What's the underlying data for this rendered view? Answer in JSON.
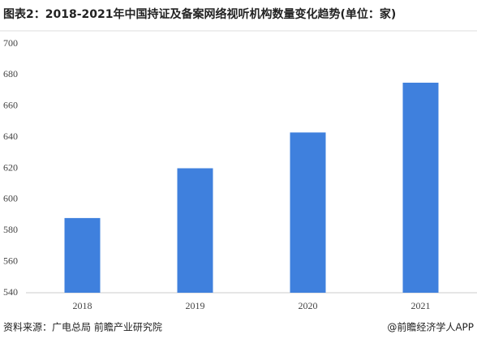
{
  "chart_data": {
    "type": "bar",
    "title": "图表2：2018-2021年中国持证及备案网络视听机构数量变化趋势(单位：家)",
    "categories": [
      "2018",
      "2019",
      "2020",
      "2021"
    ],
    "values": [
      588,
      620,
      643,
      675
    ],
    "color": "#3f80dd",
    "ylim": [
      540,
      700
    ],
    "yticks": [
      540,
      560,
      580,
      600,
      620,
      640,
      660,
      680,
      700
    ],
    "grid": false,
    "source": "资料来源：广电总局 前瞻产业研究院",
    "credit": "@前瞻经济学人APP"
  }
}
